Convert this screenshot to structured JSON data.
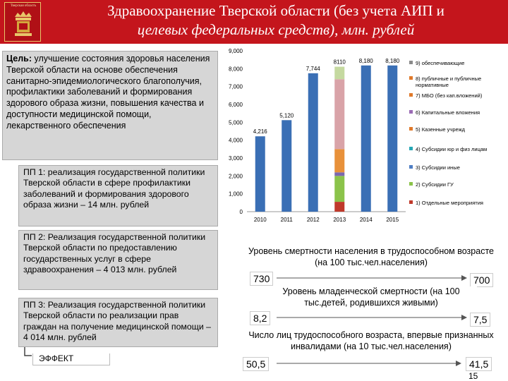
{
  "header": {
    "emblem_caption": "Тверская область",
    "title_line1": "Здравоохранение Тверской области (без учета АИП и",
    "title_line2": "целевых федеральных средств), млн. рублей"
  },
  "left": {
    "goal_head": "Цель:",
    "goal_text": " улучшение состояния здоровья населения Тверской области на основе обеспечения санитарно-эпидемиологического благополучия, профилактики заболеваний и формирования здорового образа жизни, повышения качества и доступности медицинской помощи, лекарственного обеспечения",
    "pp1": "ПП 1: реализация государственной политики Тверской области в сфере профилактики заболеваний и формирования здорового образа жизни – 14 млн. рублей",
    "pp2": "ПП 2: Реализация государственной политики Тверской области по предоставлению государственных услуг в сфере здравоохранения – 4 013 млн. рублей",
    "pp3": "ПП 3: Реализация государственной политики Тверской области по реализации прав граждан на получение медицинской помощи – 4 014 млн. рублей",
    "effect": "ЭФФЕКТ"
  },
  "chart_data": {
    "type": "bar",
    "categories": [
      "2010",
      "2011",
      "2012",
      "2013",
      "2014",
      "2015"
    ],
    "ylim": [
      0,
      9000
    ],
    "y_ticks": [
      "0",
      "1,000",
      "2,000",
      "3,000",
      "4,000",
      "5,000",
      "6,000",
      "7,000",
      "8,000",
      "9,000"
    ],
    "total_labels": [
      "4,216",
      "5,120",
      "7,744",
      "8110",
      "8,180",
      "8,180"
    ],
    "totals": [
      4216,
      5120,
      7744,
      8110,
      8180,
      8180
    ],
    "series_2013": [
      {
        "name": "1) Отдельные мероприятия",
        "value": 550,
        "color": "#c0392b"
      },
      {
        "name": "2) Субсидии ГУ",
        "value": 1450,
        "color": "#8bc34a"
      },
      {
        "name": "3) Субсидии иные",
        "value": 200,
        "color": "#7b68ae"
      },
      {
        "name": "4) Субсидии юр и физ лицам",
        "value": 0,
        "color": "#26a7b5"
      },
      {
        "name": "5) Казенные учрежд",
        "value": 1300,
        "color": "#e8913a"
      },
      {
        "name": "6) Капитальные вложения",
        "value": 0,
        "color": "#4f7ec4"
      },
      {
        "name": "7) МБО (без кап.вложений)",
        "value": 0,
        "color": "#c9544f"
      },
      {
        "name": "8) публичные и публичные нормативные",
        "value": 3910,
        "color": "#d9a3a8"
      },
      {
        "name": "9) обеспечивающие",
        "value": 700,
        "color": "#c5d9a0"
      }
    ],
    "legend": [
      {
        "text": "9) обеспечивающие",
        "color": "#8a8a8a"
      },
      {
        "text": "8) публичные и публичные нормативные",
        "color": "#e07a2b"
      },
      {
        "text": "7) МБО (без кап.вложений)",
        "color": "#e07a2b"
      },
      {
        "text": "6) Капитальные вложения",
        "color": "#9b6bb5"
      },
      {
        "text": "5) Казенные учрежд",
        "color": "#e07a2b"
      },
      {
        "text": "4) Субсидии юр и физ лицам",
        "color": "#26a7b5"
      },
      {
        "text": "3) Субсидии иные",
        "color": "#4f7ec4"
      },
      {
        "text": "2) Субсидии ГУ",
        "color": "#8bc34a"
      },
      {
        "text": "1) Отдельные мероприятия",
        "color": "#c0392b"
      }
    ],
    "bar_color": "#3a6fb5",
    "legend_position": "right"
  },
  "indicators": [
    {
      "title": "Уровень смертности населения в трудоспособном возрасте (на 100 тыс.чел.населения)",
      "from": "730",
      "to": "700"
    },
    {
      "title": "Уровень младенческой смертности (на 100 тыс.детей, родившихся живыми)",
      "from": "8,2",
      "to": "7,5"
    },
    {
      "title": "Число лиц трудоспособного возраста, впервые признанных инвалидами (на 10 тыс.чел.населения)",
      "from": "50,5",
      "to": "41,5"
    }
  ],
  "page_number": "15"
}
